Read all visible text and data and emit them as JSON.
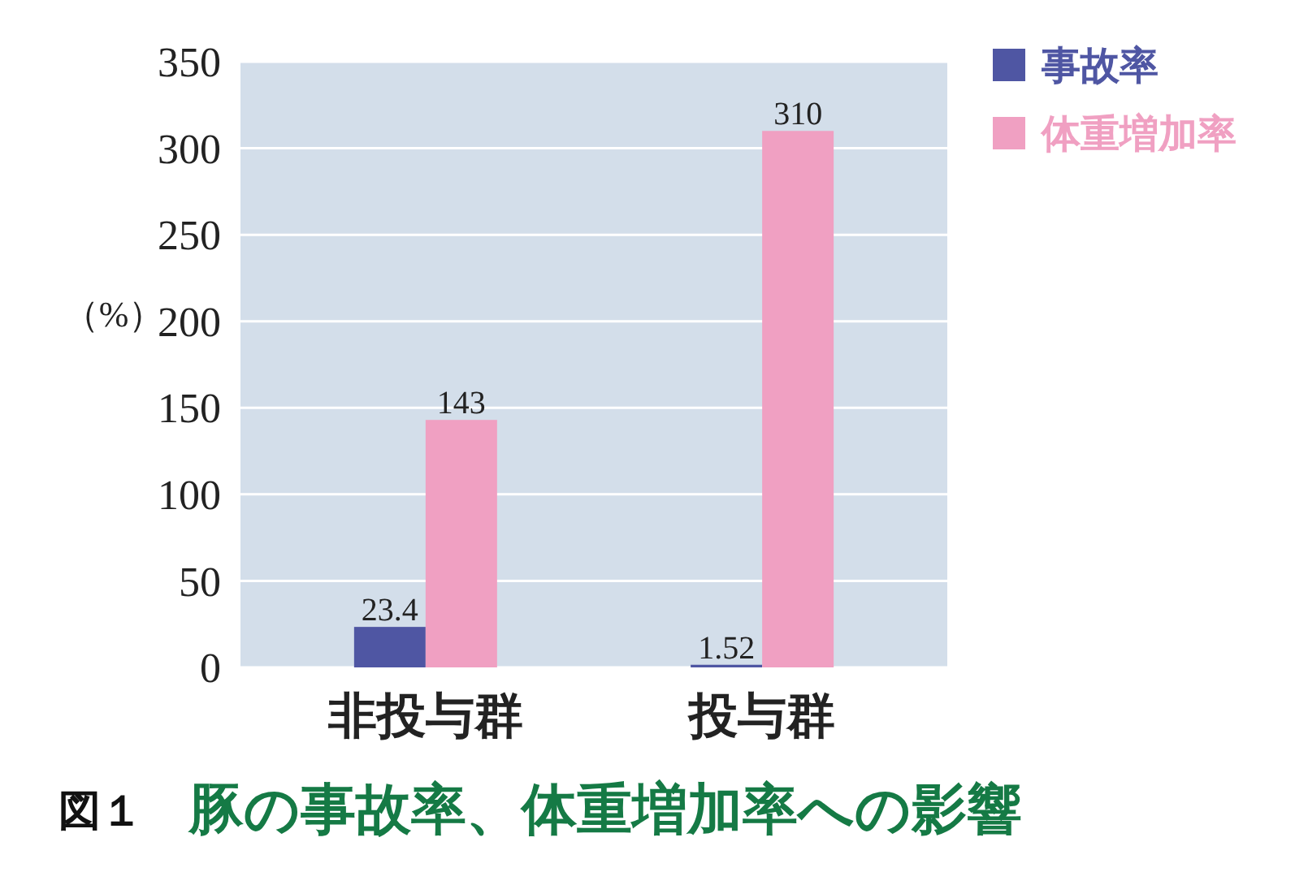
{
  "chart_data": {
    "type": "bar",
    "title": "豚の事故率、体重増加率への影響",
    "ylabel": "（%）",
    "annotations": [
      "図１"
    ],
    "categories": [
      "非投与群",
      "投与群"
    ],
    "series": [
      {
        "name": "事故率",
        "color": "#4f56a3",
        "values": [
          23.4,
          1.52
        ]
      },
      {
        "name": "体重増加率",
        "color": "#f0a0c2",
        "values": [
          143,
          310
        ]
      }
    ],
    "ylim": [
      0,
      350
    ],
    "yticks": [
      0,
      50,
      100,
      150,
      200,
      250,
      300,
      350
    ],
    "grid": "y",
    "legend": "top right",
    "data_labels": true
  }
}
